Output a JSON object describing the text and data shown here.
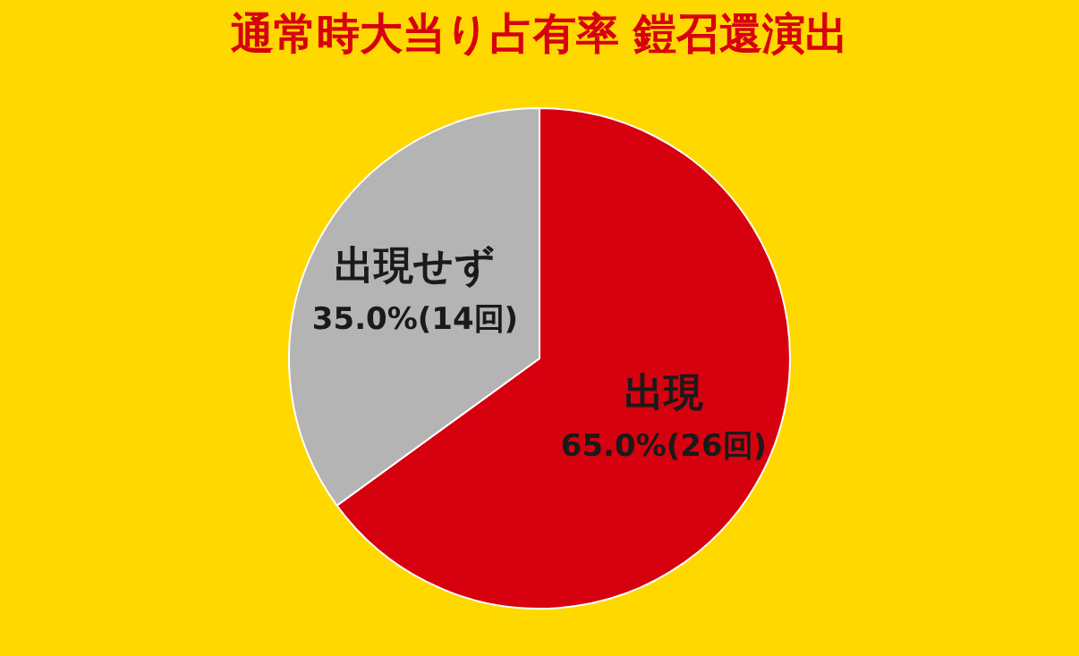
{
  "chart_data": {
    "type": "pie",
    "title": "通常時大当り占有率 鎧召還演出",
    "categories": [
      "出現",
      "出現せず"
    ],
    "values": [
      65.0,
      35.0
    ],
    "value_labels": [
      "65.0%(26回)",
      "35.0%(14回)"
    ],
    "colors": [
      "#d7000f",
      "#b4b4b5"
    ]
  }
}
